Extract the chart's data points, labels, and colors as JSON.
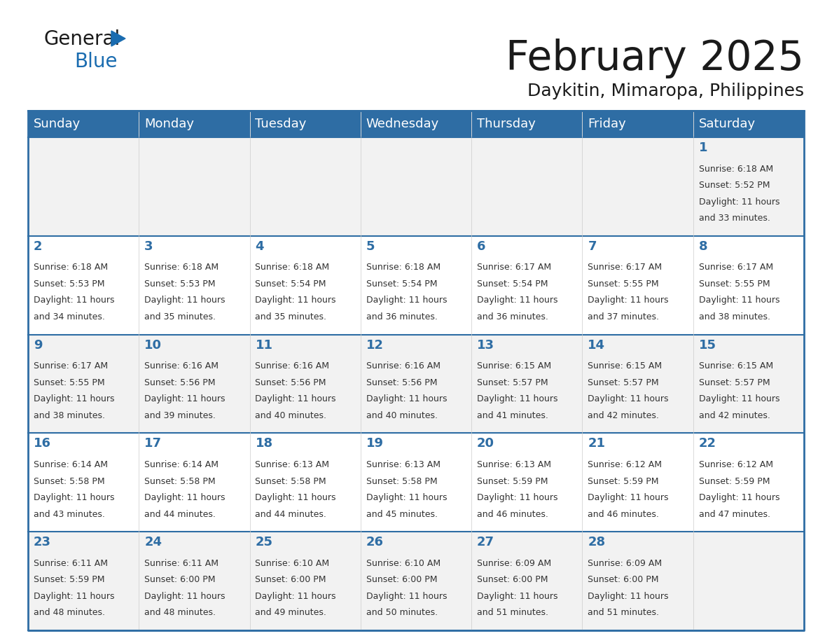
{
  "title": "February 2025",
  "subtitle": "Daykitin, Mimaropa, Philippines",
  "header_bg": "#2E6DA4",
  "header_text": "#FFFFFF",
  "cell_bg_row0": "#F2F2F2",
  "cell_bg_row1": "#FFFFFF",
  "cell_bg_row2": "#F2F2F2",
  "cell_bg_row3": "#FFFFFF",
  "cell_bg_row4": "#F2F2F2",
  "cell_border": "#CCCCCC",
  "day_headers": [
    "Sunday",
    "Monday",
    "Tuesday",
    "Wednesday",
    "Thursday",
    "Friday",
    "Saturday"
  ],
  "days": [
    {
      "day": 1,
      "col": 6,
      "row": 0,
      "sunrise": "6:18 AM",
      "sunset": "5:52 PM",
      "daylight": "11 hours and 33 minutes."
    },
    {
      "day": 2,
      "col": 0,
      "row": 1,
      "sunrise": "6:18 AM",
      "sunset": "5:53 PM",
      "daylight": "11 hours and 34 minutes."
    },
    {
      "day": 3,
      "col": 1,
      "row": 1,
      "sunrise": "6:18 AM",
      "sunset": "5:53 PM",
      "daylight": "11 hours and 35 minutes."
    },
    {
      "day": 4,
      "col": 2,
      "row": 1,
      "sunrise": "6:18 AM",
      "sunset": "5:54 PM",
      "daylight": "11 hours and 35 minutes."
    },
    {
      "day": 5,
      "col": 3,
      "row": 1,
      "sunrise": "6:18 AM",
      "sunset": "5:54 PM",
      "daylight": "11 hours and 36 minutes."
    },
    {
      "day": 6,
      "col": 4,
      "row": 1,
      "sunrise": "6:17 AM",
      "sunset": "5:54 PM",
      "daylight": "11 hours and 36 minutes."
    },
    {
      "day": 7,
      "col": 5,
      "row": 1,
      "sunrise": "6:17 AM",
      "sunset": "5:55 PM",
      "daylight": "11 hours and 37 minutes."
    },
    {
      "day": 8,
      "col": 6,
      "row": 1,
      "sunrise": "6:17 AM",
      "sunset": "5:55 PM",
      "daylight": "11 hours and 38 minutes."
    },
    {
      "day": 9,
      "col": 0,
      "row": 2,
      "sunrise": "6:17 AM",
      "sunset": "5:55 PM",
      "daylight": "11 hours and 38 minutes."
    },
    {
      "day": 10,
      "col": 1,
      "row": 2,
      "sunrise": "6:16 AM",
      "sunset": "5:56 PM",
      "daylight": "11 hours and 39 minutes."
    },
    {
      "day": 11,
      "col": 2,
      "row": 2,
      "sunrise": "6:16 AM",
      "sunset": "5:56 PM",
      "daylight": "11 hours and 40 minutes."
    },
    {
      "day": 12,
      "col": 3,
      "row": 2,
      "sunrise": "6:16 AM",
      "sunset": "5:56 PM",
      "daylight": "11 hours and 40 minutes."
    },
    {
      "day": 13,
      "col": 4,
      "row": 2,
      "sunrise": "6:15 AM",
      "sunset": "5:57 PM",
      "daylight": "11 hours and 41 minutes."
    },
    {
      "day": 14,
      "col": 5,
      "row": 2,
      "sunrise": "6:15 AM",
      "sunset": "5:57 PM",
      "daylight": "11 hours and 42 minutes."
    },
    {
      "day": 15,
      "col": 6,
      "row": 2,
      "sunrise": "6:15 AM",
      "sunset": "5:57 PM",
      "daylight": "11 hours and 42 minutes."
    },
    {
      "day": 16,
      "col": 0,
      "row": 3,
      "sunrise": "6:14 AM",
      "sunset": "5:58 PM",
      "daylight": "11 hours and 43 minutes."
    },
    {
      "day": 17,
      "col": 1,
      "row": 3,
      "sunrise": "6:14 AM",
      "sunset": "5:58 PM",
      "daylight": "11 hours and 44 minutes."
    },
    {
      "day": 18,
      "col": 2,
      "row": 3,
      "sunrise": "6:13 AM",
      "sunset": "5:58 PM",
      "daylight": "11 hours and 44 minutes."
    },
    {
      "day": 19,
      "col": 3,
      "row": 3,
      "sunrise": "6:13 AM",
      "sunset": "5:58 PM",
      "daylight": "11 hours and 45 minutes."
    },
    {
      "day": 20,
      "col": 4,
      "row": 3,
      "sunrise": "6:13 AM",
      "sunset": "5:59 PM",
      "daylight": "11 hours and 46 minutes."
    },
    {
      "day": 21,
      "col": 5,
      "row": 3,
      "sunrise": "6:12 AM",
      "sunset": "5:59 PM",
      "daylight": "11 hours and 46 minutes."
    },
    {
      "day": 22,
      "col": 6,
      "row": 3,
      "sunrise": "6:12 AM",
      "sunset": "5:59 PM",
      "daylight": "11 hours and 47 minutes."
    },
    {
      "day": 23,
      "col": 0,
      "row": 4,
      "sunrise": "6:11 AM",
      "sunset": "5:59 PM",
      "daylight": "11 hours and 48 minutes."
    },
    {
      "day": 24,
      "col": 1,
      "row": 4,
      "sunrise": "6:11 AM",
      "sunset": "6:00 PM",
      "daylight": "11 hours and 48 minutes."
    },
    {
      "day": 25,
      "col": 2,
      "row": 4,
      "sunrise": "6:10 AM",
      "sunset": "6:00 PM",
      "daylight": "11 hours and 49 minutes."
    },
    {
      "day": 26,
      "col": 3,
      "row": 4,
      "sunrise": "6:10 AM",
      "sunset": "6:00 PM",
      "daylight": "11 hours and 50 minutes."
    },
    {
      "day": 27,
      "col": 4,
      "row": 4,
      "sunrise": "6:09 AM",
      "sunset": "6:00 PM",
      "daylight": "11 hours and 51 minutes."
    },
    {
      "day": 28,
      "col": 5,
      "row": 4,
      "sunrise": "6:09 AM",
      "sunset": "6:00 PM",
      "daylight": "11 hours and 51 minutes."
    }
  ],
  "num_rows": 5,
  "logo_color_general": "#1a1a1a",
  "logo_color_blue": "#1a6cb0",
  "logo_triangle_color": "#1a6cb0",
  "title_fontsize": 42,
  "subtitle_fontsize": 18,
  "header_fontsize": 13,
  "day_num_fontsize": 13,
  "cell_text_fontsize": 9
}
